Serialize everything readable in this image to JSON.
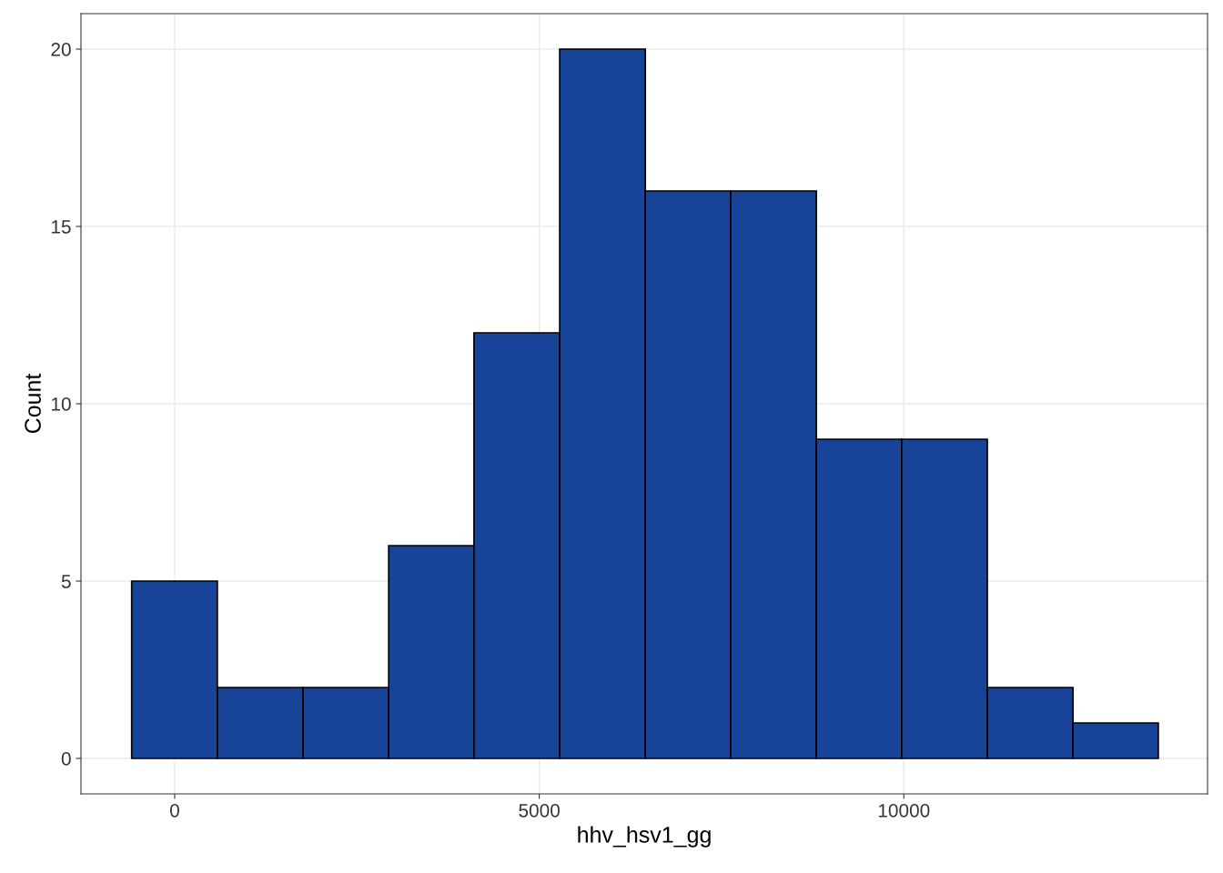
{
  "chart_data": {
    "type": "histogram",
    "xlabel": "hhv_hsv1_gg",
    "ylabel": "Count",
    "bins": [
      -590,
      585,
      1760,
      2935,
      4105,
      5280,
      6455,
      7625,
      8800,
      9970,
      11145,
      12320,
      13490
    ],
    "values": [
      5,
      2,
      2,
      6,
      12,
      20,
      16,
      16,
      9,
      9,
      2,
      1
    ],
    "color": "#174499",
    "xlim": [
      -1285,
      14165
    ],
    "ylim": [
      -1.0,
      21.0
    ],
    "xticks": [
      0,
      5000,
      10000
    ],
    "yticks": [
      0,
      5,
      10,
      15,
      20
    ],
    "grid": true
  }
}
